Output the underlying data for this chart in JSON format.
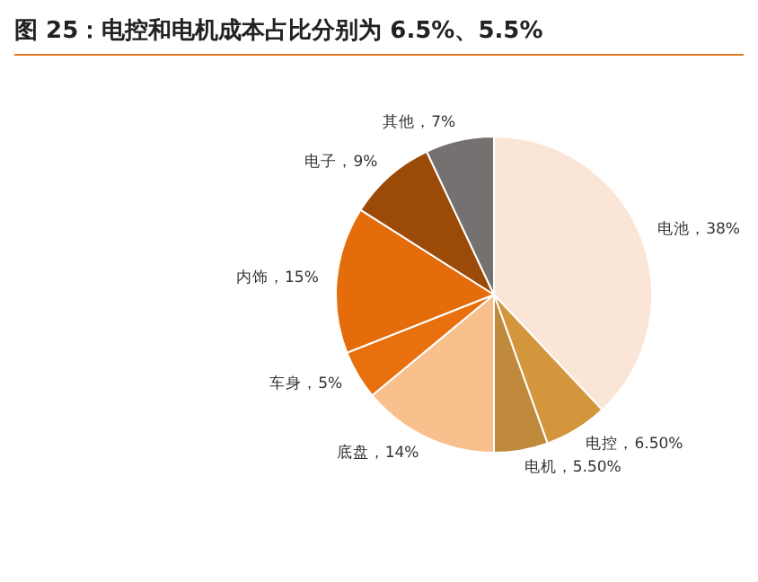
{
  "chart_data": {
    "type": "pie",
    "title": "图 25：电控和电机成本占比分别为 6.5%、5.5%",
    "categories": [
      "电池",
      "电控",
      "电机",
      "底盘",
      "车身",
      "内饰",
      "电子",
      "其他"
    ],
    "values": [
      38,
      6.5,
      5.5,
      14,
      5,
      15,
      9,
      7
    ],
    "value_labels": [
      "38%",
      "6.50%",
      "5.50%",
      "14%",
      "5%",
      "15%",
      "9%",
      "7%"
    ],
    "colors": [
      "#fbe5d6",
      "#d4963c",
      "#bf8a3c",
      "#f8c08d",
      "#e8700f",
      "#e46c0a",
      "#9c4a08",
      "#767171"
    ]
  }
}
